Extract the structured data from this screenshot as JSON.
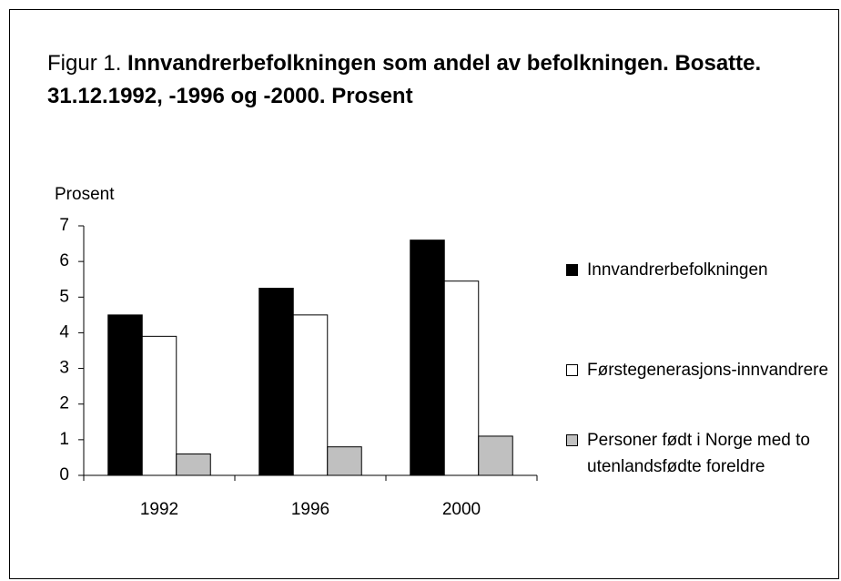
{
  "chart_data": {
    "type": "bar",
    "title_prefix": "Figur 1.",
    "title": "Innvandrerbefolkningen som andel av befolkningen. Bosatte. 31.12.1992, -1996 og -2000. Prosent",
    "y_label": "Prosent",
    "categories": [
      "1992",
      "1996",
      "2000"
    ],
    "series": [
      {
        "name": "Innvandrerbefolkningen",
        "color": "#000000",
        "values": [
          4.5,
          5.25,
          6.6
        ]
      },
      {
        "name": "Førstegenerasjons-innvandrere",
        "color": "#ffffff",
        "values": [
          3.9,
          4.5,
          5.45
        ]
      },
      {
        "name": "Personer født i Norge med to utenlandsfødte foreldre",
        "color": "#c0c0c0",
        "values": [
          0.6,
          0.8,
          1.1
        ]
      }
    ],
    "ylim": [
      0,
      7
    ],
    "yticks": [
      0,
      1,
      2,
      3,
      4,
      5,
      6,
      7
    ],
    "grid": false,
    "legend": "right"
  }
}
